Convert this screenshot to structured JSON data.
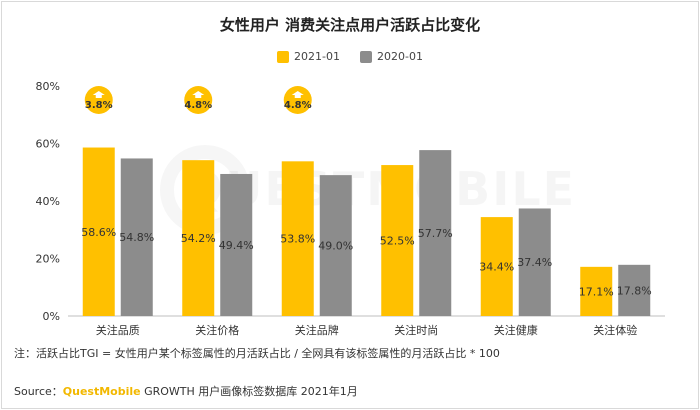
{
  "chart_data": {
    "type": "bar",
    "title": "女性用户 消费关注点用户活跃占比变化",
    "categories": [
      "关注品质",
      "关注价格",
      "关注品牌",
      "关注时尚",
      "关注健康",
      "关注体验"
    ],
    "series": [
      {
        "name": "2021-01",
        "values": [
          58.6,
          54.2,
          53.8,
          52.5,
          34.4,
          17.1
        ],
        "color": "#ffc000"
      },
      {
        "name": "2020-01",
        "values": [
          54.8,
          49.4,
          49.0,
          57.7,
          37.4,
          17.8
        ],
        "color": "#8c8c8c"
      }
    ],
    "value_labels": [
      [
        "58.6%",
        "54.2%",
        "53.8%",
        "52.5%",
        "34.4%",
        "17.1%"
      ],
      [
        "54.8%",
        "49.4%",
        "49.0%",
        "57.7%",
        "37.4%",
        "17.8%"
      ]
    ],
    "yticks": [
      "0%",
      "20%",
      "40%",
      "60%",
      "80%"
    ],
    "ylim": [
      0,
      80
    ],
    "grid": false,
    "legend_position": "top-center",
    "annotations": [
      {
        "category": "关注品质",
        "text": "3.8%"
      },
      {
        "category": "关注价格",
        "text": "4.8%"
      },
      {
        "category": "关注品牌",
        "text": "4.8%"
      }
    ]
  },
  "note": "注：活跃占比TGI = 女性用户某个标签属性的月活跃占比 / 全网具有该标签属性的月活跃占比 * 100",
  "source": {
    "prefix": "Source：",
    "brand": "QuestMobile",
    "suffix": " GROWTH 用户画像标签数据库 2021年1月"
  },
  "watermark": "QUESTMOBILE"
}
